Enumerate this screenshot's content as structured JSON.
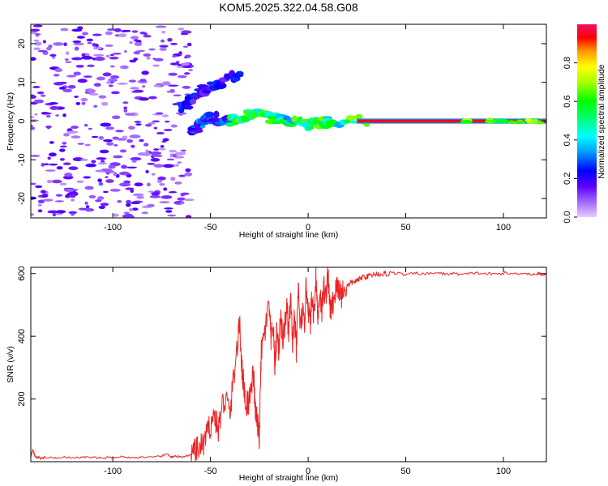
{
  "title": "KOM5.2025.322.04.58.G08",
  "chart_data": [
    {
      "type": "heatmap",
      "xlabel": "Height of straight line (km)",
      "ylabel": "Frequency (Hz)",
      "xlim": [
        -142,
        122
      ],
      "ylim": [
        -25,
        25
      ],
      "xticks": [
        -100,
        -50,
        0,
        50,
        100
      ],
      "yticks": [
        -20,
        -10,
        0,
        10,
        20
      ],
      "colorbar": {
        "label": "Normalized spectral amplitude",
        "ticks": [
          0.0,
          0.2,
          0.4,
          0.6,
          0.8
        ],
        "tick_labels": [
          "0.0",
          "0.2",
          "0.4",
          "0.6",
          "0.8"
        ],
        "range": [
          0,
          1
        ]
      },
      "features": [
        {
          "name": "noise-cloud",
          "x_range": [
            -142,
            -60
          ],
          "y_range": [
            -25,
            25
          ],
          "amplitude": 0.1
        },
        {
          "name": "upper-branch",
          "points": [
            [
              -65,
              3
            ],
            [
              -55,
              8
            ],
            [
              -45,
              10
            ],
            [
              -35,
              12
            ]
          ],
          "amplitude": 0.2
        },
        {
          "name": "lower-branch",
          "points": [
            [
              -60,
              -3
            ],
            [
              -55,
              -1
            ],
            [
              -50,
              1
            ],
            [
              -40,
              0
            ]
          ],
          "amplitude": 0.25
        },
        {
          "name": "merging-trace",
          "points": [
            [
              -40,
              0
            ],
            [
              -30,
              2
            ],
            [
              -20,
              1
            ],
            [
              -10,
              0
            ],
            [
              0,
              -1
            ],
            [
              10,
              0
            ],
            [
              30,
              0
            ]
          ],
          "amplitude": 0.5
        },
        {
          "name": "main-line",
          "x_range": [
            25,
            122
          ],
          "frequency": 0,
          "amplitude": 1.0
        }
      ]
    },
    {
      "type": "line",
      "xlabel": "Height of straight line (km)",
      "ylabel": "SNR (v/v)",
      "xlim": [
        -142,
        122
      ],
      "ylim": [
        0,
        620
      ],
      "xticks": [
        -100,
        -50,
        0,
        50,
        100
      ],
      "yticks": [
        200,
        400,
        600
      ],
      "series": [
        {
          "name": "SNR",
          "color": "#ee2222",
          "x": [
            -142,
            -141,
            -140,
            -139,
            -138,
            -137,
            -135,
            -130,
            -125,
            -120,
            -115,
            -110,
            -105,
            -100,
            -95,
            -90,
            -85,
            -80,
            -75,
            -72,
            -70,
            -68,
            -65,
            -62,
            -60,
            -58,
            -56,
            -54,
            -52,
            -50,
            -48,
            -46,
            -44,
            -42,
            -40,
            -38,
            -36,
            -35,
            -34,
            -33,
            -32,
            -30,
            -28,
            -27,
            -26,
            -25,
            -24,
            -22,
            -20,
            -19,
            -18,
            -17,
            -16,
            -15,
            -14,
            -13,
            -12,
            -11,
            -10,
            -9,
            -8,
            -7,
            -6,
            -5,
            -4,
            -3,
            -2,
            -1,
            0,
            1,
            2,
            3,
            4,
            5,
            6,
            7,
            8,
            9,
            10,
            11,
            12,
            13,
            14,
            15,
            16,
            17,
            18,
            20,
            22,
            24,
            26,
            28,
            30,
            32,
            35,
            38,
            40,
            45,
            50,
            55,
            60,
            65,
            70,
            75,
            80,
            85,
            90,
            95,
            100,
            105,
            110,
            115,
            118,
            120,
            122
          ],
          "values": [
            15,
            40,
            20,
            12,
            15,
            10,
            14,
            12,
            16,
            11,
            15,
            13,
            12,
            14,
            16,
            12,
            15,
            13,
            18,
            25,
            14,
            17,
            15,
            19,
            22,
            30,
            40,
            55,
            80,
            120,
            150,
            100,
            180,
            200,
            150,
            280,
            380,
            450,
            300,
            250,
            180,
            200,
            280,
            160,
            120,
            80,
            350,
            420,
            500,
            380,
            440,
            300,
            420,
            350,
            480,
            380,
            430,
            500,
            400,
            520,
            380,
            460,
            350,
            560,
            420,
            480,
            430,
            560,
            500,
            440,
            520,
            470,
            600,
            450,
            550,
            480,
            560,
            520,
            610,
            500,
            480,
            520,
            540,
            560,
            550,
            530,
            550,
            560,
            570,
            575,
            580,
            590,
            590,
            595,
            600,
            598,
            600,
            602,
            596,
            601,
            598,
            603,
            599,
            600,
            597,
            602,
            600,
            598,
            601,
            599,
            602,
            597,
            600,
            596,
            601
          ]
        }
      ]
    }
  ]
}
